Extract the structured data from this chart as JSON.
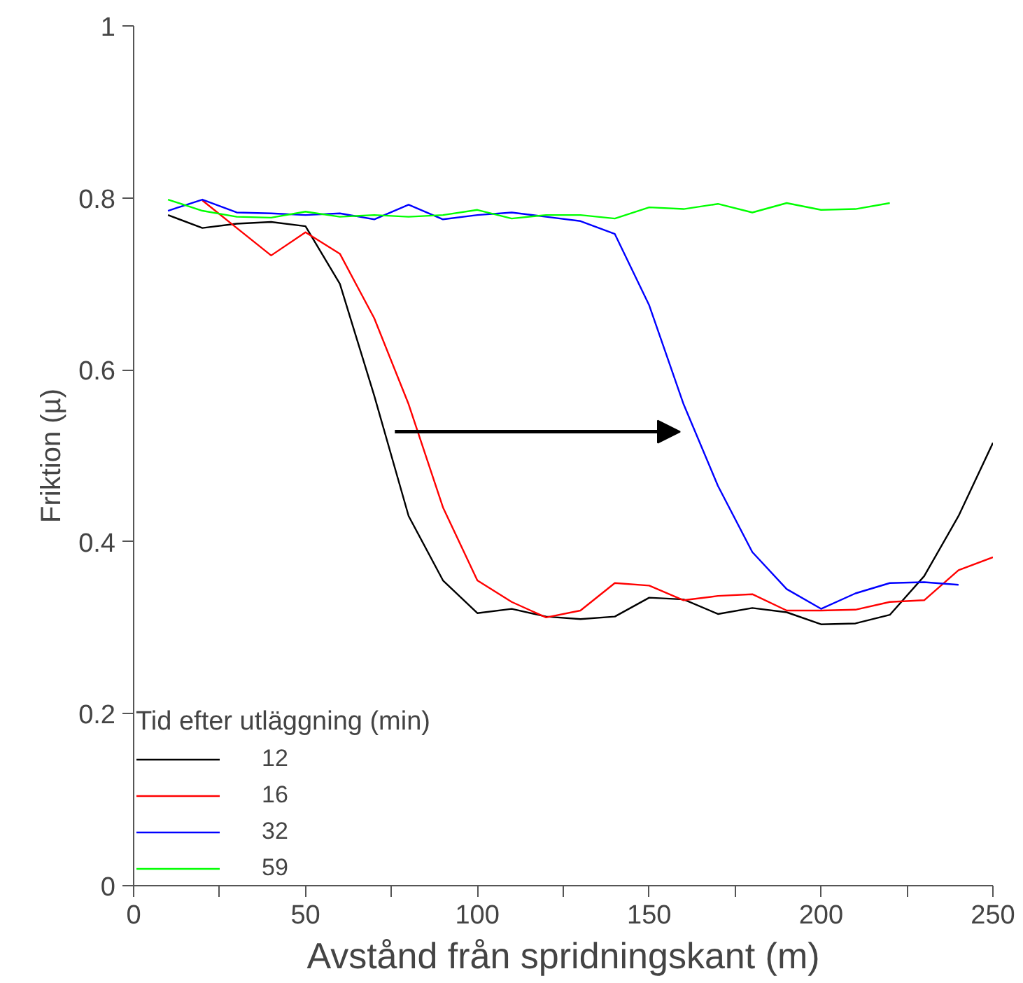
{
  "chart_data": {
    "type": "line",
    "xlabel": "Avstånd från spridningskant (m)",
    "ylabel": "Friktion (µ)",
    "legend_title": "Tid efter utläggning (min)",
    "legend": "bottom left",
    "grid": false,
    "marker": "none",
    "line_style": "solid",
    "xlim": [
      0,
      250
    ],
    "ylim": [
      0,
      1
    ],
    "xticks": [
      0,
      {
        "value": 25,
        "label": null
      },
      50,
      {
        "value": 75,
        "label": null
      },
      100,
      {
        "value": 125,
        "label": null
      },
      150,
      {
        "value": 175,
        "label": null
      },
      200,
      {
        "value": 225,
        "label": null
      },
      250
    ],
    "yticks": [
      0,
      0.2,
      0.4,
      0.6,
      0.8,
      1
    ],
    "x": [
      10,
      20,
      30,
      40,
      50,
      60,
      70,
      80,
      90,
      100,
      110,
      120,
      130,
      140,
      150,
      160,
      170,
      180,
      190,
      200,
      210,
      220,
      230,
      240,
      250
    ],
    "series": [
      {
        "name": "12",
        "color": "#000000",
        "values": [
          0.78,
          0.765,
          0.77,
          0.772,
          0.767,
          0.7,
          0.57,
          0.43,
          0.355,
          0.317,
          0.322,
          0.313,
          0.31,
          0.313,
          0.335,
          0.333,
          0.316,
          0.323,
          0.318,
          0.304,
          0.305,
          0.315,
          0.36,
          0.43,
          0.515
        ]
      },
      {
        "name": "16",
        "color": "#ff0000",
        "values": [
          null,
          0.797,
          0.765,
          0.733,
          0.76,
          0.735,
          0.66,
          0.56,
          0.44,
          0.355,
          0.33,
          0.312,
          0.32,
          0.352,
          0.349,
          0.332,
          0.337,
          0.339,
          0.32,
          0.32,
          0.321,
          0.33,
          0.332,
          0.367,
          0.382
        ]
      },
      {
        "name": "32",
        "color": "#0000ff",
        "values": [
          0.785,
          0.798,
          0.783,
          0.782,
          0.78,
          0.782,
          0.775,
          0.792,
          0.775,
          0.78,
          0.783,
          0.778,
          0.773,
          0.758,
          0.675,
          0.56,
          0.465,
          0.388,
          0.345,
          0.322,
          0.34,
          0.352,
          0.353,
          0.35,
          null
        ]
      },
      {
        "name": "59",
        "color": "#00ff00",
        "values": [
          0.798,
          0.785,
          0.778,
          0.777,
          0.784,
          0.778,
          0.78,
          0.778,
          0.78,
          0.786,
          0.776,
          0.78,
          0.78,
          0.776,
          0.789,
          0.787,
          0.793,
          0.783,
          0.794,
          0.786,
          0.787,
          0.794,
          null,
          null,
          null
        ]
      }
    ]
  }
}
